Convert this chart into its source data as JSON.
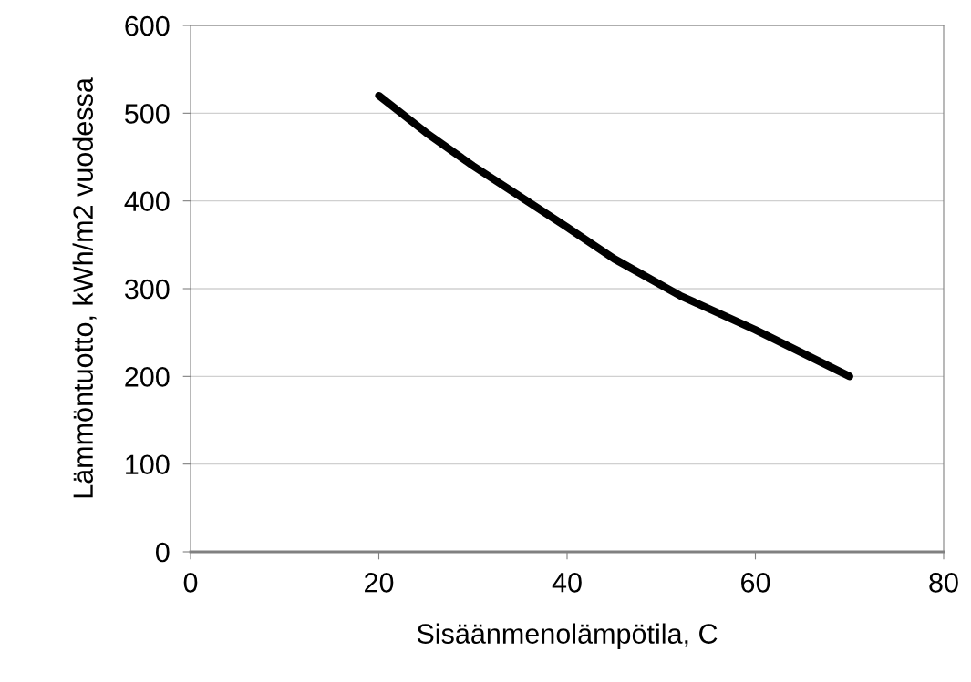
{
  "chart_data": {
    "type": "line",
    "xlabel": "Sisäänmenolämpötila, C",
    "ylabel": "Lämmöntuotto, kWh/m2 vuodessa",
    "x": [
      20,
      25,
      30,
      35,
      40,
      45,
      52,
      60,
      70
    ],
    "series": [
      {
        "color": "#000000",
        "values": [
          520,
          478,
          440,
          405,
          370,
          334,
          292,
          253,
          200
        ]
      }
    ],
    "xlim": [
      0,
      80
    ],
    "xticks": [
      0,
      20,
      40,
      60,
      80
    ],
    "ylim": [
      0,
      600
    ],
    "yticks": [
      0,
      100,
      200,
      300,
      400,
      500,
      600
    ],
    "grid": "y",
    "marker": "none",
    "line_style": "solid"
  }
}
